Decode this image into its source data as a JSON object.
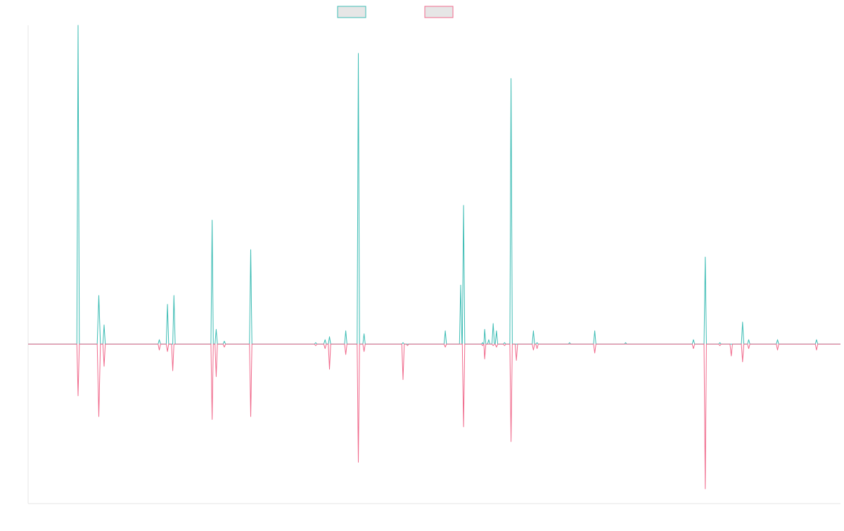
{
  "chart_data": {
    "type": "line",
    "title": "",
    "xlabel": "",
    "ylabel": "",
    "grid": false,
    "legend_placement": "top-center",
    "ylim": [
      -108,
      216
    ],
    "xlim": [
      0,
      200
    ],
    "colors": {
      "series_a": "#3cbcb4",
      "series_b": "#f06a8c",
      "legend_fill": "#e6e6e6",
      "axis": "#e6e6e6"
    },
    "series": [
      {
        "name": "",
        "color": "#3cbcb4",
        "points": [
          [
            0,
            0
          ],
          [
            1,
            0
          ],
          [
            12,
            0
          ],
          [
            12.3,
            216
          ],
          [
            12.6,
            0
          ],
          [
            17,
            0
          ],
          [
            17.4,
            33
          ],
          [
            17.8,
            0
          ],
          [
            18.4,
            0
          ],
          [
            18.7,
            13
          ],
          [
            19,
            0
          ],
          [
            32,
            0
          ],
          [
            32.3,
            3
          ],
          [
            32.6,
            0
          ],
          [
            34,
            0
          ],
          [
            34.3,
            27
          ],
          [
            34.6,
            0
          ],
          [
            35.6,
            0
          ],
          [
            35.9,
            33
          ],
          [
            36.2,
            0
          ],
          [
            45,
            0
          ],
          [
            45.3,
            84
          ],
          [
            45.6,
            0
          ],
          [
            46,
            0
          ],
          [
            46.3,
            10
          ],
          [
            46.6,
            0
          ],
          [
            48,
            0
          ],
          [
            48.3,
            2
          ],
          [
            48.6,
            0
          ],
          [
            54.5,
            0
          ],
          [
            54.8,
            64
          ],
          [
            55.1,
            0
          ],
          [
            70.5,
            0
          ],
          [
            70.8,
            1
          ],
          [
            71.1,
            0
          ],
          [
            72.8,
            0
          ],
          [
            73.1,
            3
          ],
          [
            73.4,
            0
          ],
          [
            73.9,
            0
          ],
          [
            74.2,
            5
          ],
          [
            74.5,
            0
          ],
          [
            77.9,
            0
          ],
          [
            78.2,
            9
          ],
          [
            78.5,
            0
          ],
          [
            81,
            0
          ],
          [
            81.3,
            197
          ],
          [
            81.6,
            0
          ],
          [
            82.4,
            0
          ],
          [
            82.7,
            7
          ],
          [
            83,
            0
          ],
          [
            92,
            0
          ],
          [
            92.3,
            1
          ],
          [
            92.6,
            0
          ],
          [
            102.4,
            0
          ],
          [
            102.7,
            9
          ],
          [
            103,
            0
          ],
          [
            106.2,
            0
          ],
          [
            106.5,
            40
          ],
          [
            106.8,
            0
          ],
          [
            106.9,
            0
          ],
          [
            107.2,
            94
          ],
          [
            107.5,
            0
          ],
          [
            111.6,
            0
          ],
          [
            111.9,
            1
          ],
          [
            112.2,
            0
          ],
          [
            112.1,
            0
          ],
          [
            112.4,
            10
          ],
          [
            112.7,
            0
          ],
          [
            113.1,
            0
          ],
          [
            113.4,
            3
          ],
          [
            113.7,
            0
          ],
          [
            114.2,
            0
          ],
          [
            114.5,
            14
          ],
          [
            114.8,
            0
          ],
          [
            115,
            0
          ],
          [
            115.3,
            9
          ],
          [
            115.6,
            0
          ],
          [
            117,
            0
          ],
          [
            117.3,
            1
          ],
          [
            117.6,
            0
          ],
          [
            118.6,
            0
          ],
          [
            118.9,
            180
          ],
          [
            119.2,
            0
          ],
          [
            124.1,
            0
          ],
          [
            124.4,
            9
          ],
          [
            124.7,
            0
          ],
          [
            125,
            0
          ],
          [
            125.3,
            1
          ],
          [
            125.6,
            0
          ],
          [
            133,
            0
          ],
          [
            133.3,
            1
          ],
          [
            133.6,
            0
          ],
          [
            139.2,
            0
          ],
          [
            139.5,
            9
          ],
          [
            139.8,
            0
          ],
          [
            146.8,
            0
          ],
          [
            147.1,
            1
          ],
          [
            147.4,
            0
          ],
          [
            163.5,
            0
          ],
          [
            163.8,
            3
          ],
          [
            164.1,
            0
          ],
          [
            170,
            0
          ],
          [
            170.3,
            1
          ],
          [
            170.6,
            0
          ],
          [
            166.4,
            0
          ],
          [
            166.7,
            59
          ],
          [
            167,
            0
          ],
          [
            175.6,
            0
          ],
          [
            175.9,
            15
          ],
          [
            176.2,
            0
          ],
          [
            177.1,
            0
          ],
          [
            177.4,
            3
          ],
          [
            177.7,
            0
          ],
          [
            184.2,
            0
          ],
          [
            184.5,
            3
          ],
          [
            184.8,
            0
          ],
          [
            193.8,
            0
          ],
          [
            194.1,
            3
          ],
          [
            194.4,
            0
          ],
          [
            200,
            0
          ]
        ]
      },
      {
        "name": "",
        "color": "#f06a8c",
        "points": [
          [
            0,
            0
          ],
          [
            12,
            0
          ],
          [
            12.3,
            -35
          ],
          [
            12.6,
            0
          ],
          [
            17,
            0
          ],
          [
            17.4,
            -49
          ],
          [
            17.8,
            0
          ],
          [
            18.4,
            0
          ],
          [
            18.7,
            -15
          ],
          [
            19,
            0
          ],
          [
            32,
            0
          ],
          [
            32.3,
            -4
          ],
          [
            32.6,
            0
          ],
          [
            34,
            0
          ],
          [
            34.3,
            -5
          ],
          [
            34.6,
            0
          ],
          [
            35.3,
            0
          ],
          [
            35.6,
            -18
          ],
          [
            35.9,
            0
          ],
          [
            45,
            0
          ],
          [
            45.3,
            -51
          ],
          [
            45.6,
            0
          ],
          [
            46,
            0
          ],
          [
            46.3,
            -22
          ],
          [
            46.6,
            0
          ],
          [
            48,
            0
          ],
          [
            48.3,
            -2
          ],
          [
            48.6,
            0
          ],
          [
            54.5,
            0
          ],
          [
            54.8,
            -49
          ],
          [
            55.1,
            0
          ],
          [
            70.5,
            0
          ],
          [
            70.8,
            -1
          ],
          [
            71.1,
            0
          ],
          [
            72.8,
            0
          ],
          [
            73.1,
            -3
          ],
          [
            73.4,
            0
          ],
          [
            73.9,
            0
          ],
          [
            74.2,
            -17
          ],
          [
            74.5,
            0
          ],
          [
            77.9,
            0
          ],
          [
            78.2,
            -7
          ],
          [
            78.5,
            0
          ],
          [
            81,
            0
          ],
          [
            81.3,
            -80
          ],
          [
            81.6,
            0
          ],
          [
            82.4,
            0
          ],
          [
            82.7,
            -5
          ],
          [
            83,
            0
          ],
          [
            92,
            0
          ],
          [
            92.3,
            -24
          ],
          [
            92.6,
            0
          ],
          [
            93.1,
            0
          ],
          [
            93.4,
            -1
          ],
          [
            93.7,
            0
          ],
          [
            102.4,
            0
          ],
          [
            102.7,
            -2
          ],
          [
            103,
            0
          ],
          [
            106.9,
            0
          ],
          [
            107.2,
            -56
          ],
          [
            107.5,
            0
          ],
          [
            111.6,
            0
          ],
          [
            111.9,
            -1
          ],
          [
            112.2,
            0
          ],
          [
            112.1,
            0
          ],
          [
            112.4,
            -10
          ],
          [
            112.7,
            0
          ],
          [
            114.2,
            0
          ],
          [
            114.5,
            -1
          ],
          [
            114.8,
            0
          ],
          [
            115,
            0
          ],
          [
            115.3,
            -2
          ],
          [
            115.6,
            0
          ],
          [
            117,
            0
          ],
          [
            117.3,
            -1
          ],
          [
            117.6,
            0
          ],
          [
            118.6,
            0
          ],
          [
            118.9,
            -66
          ],
          [
            119.2,
            0
          ],
          [
            119.9,
            0
          ],
          [
            120.2,
            -11
          ],
          [
            120.5,
            0
          ],
          [
            124.1,
            0
          ],
          [
            124.4,
            -4
          ],
          [
            124.7,
            0
          ],
          [
            125,
            0
          ],
          [
            125.3,
            -3
          ],
          [
            125.6,
            0
          ],
          [
            139.2,
            0
          ],
          [
            139.5,
            -6
          ],
          [
            139.8,
            0
          ],
          [
            163.5,
            0
          ],
          [
            163.8,
            -3
          ],
          [
            164.1,
            0
          ],
          [
            170,
            0
          ],
          [
            170.3,
            -1
          ],
          [
            170.6,
            0
          ],
          [
            172.8,
            0
          ],
          [
            173.1,
            -8
          ],
          [
            173.4,
            0
          ],
          [
            166.4,
            0
          ],
          [
            166.7,
            -98
          ],
          [
            167,
            0
          ],
          [
            175.6,
            0
          ],
          [
            175.9,
            -12
          ],
          [
            176.2,
            0
          ],
          [
            177.1,
            0
          ],
          [
            177.4,
            -3
          ],
          [
            177.7,
            0
          ],
          [
            184.2,
            0
          ],
          [
            184.5,
            -4
          ],
          [
            184.8,
            0
          ],
          [
            193.8,
            0
          ],
          [
            194.1,
            -4
          ],
          [
            194.4,
            0
          ],
          [
            200,
            0
          ]
        ]
      }
    ]
  }
}
